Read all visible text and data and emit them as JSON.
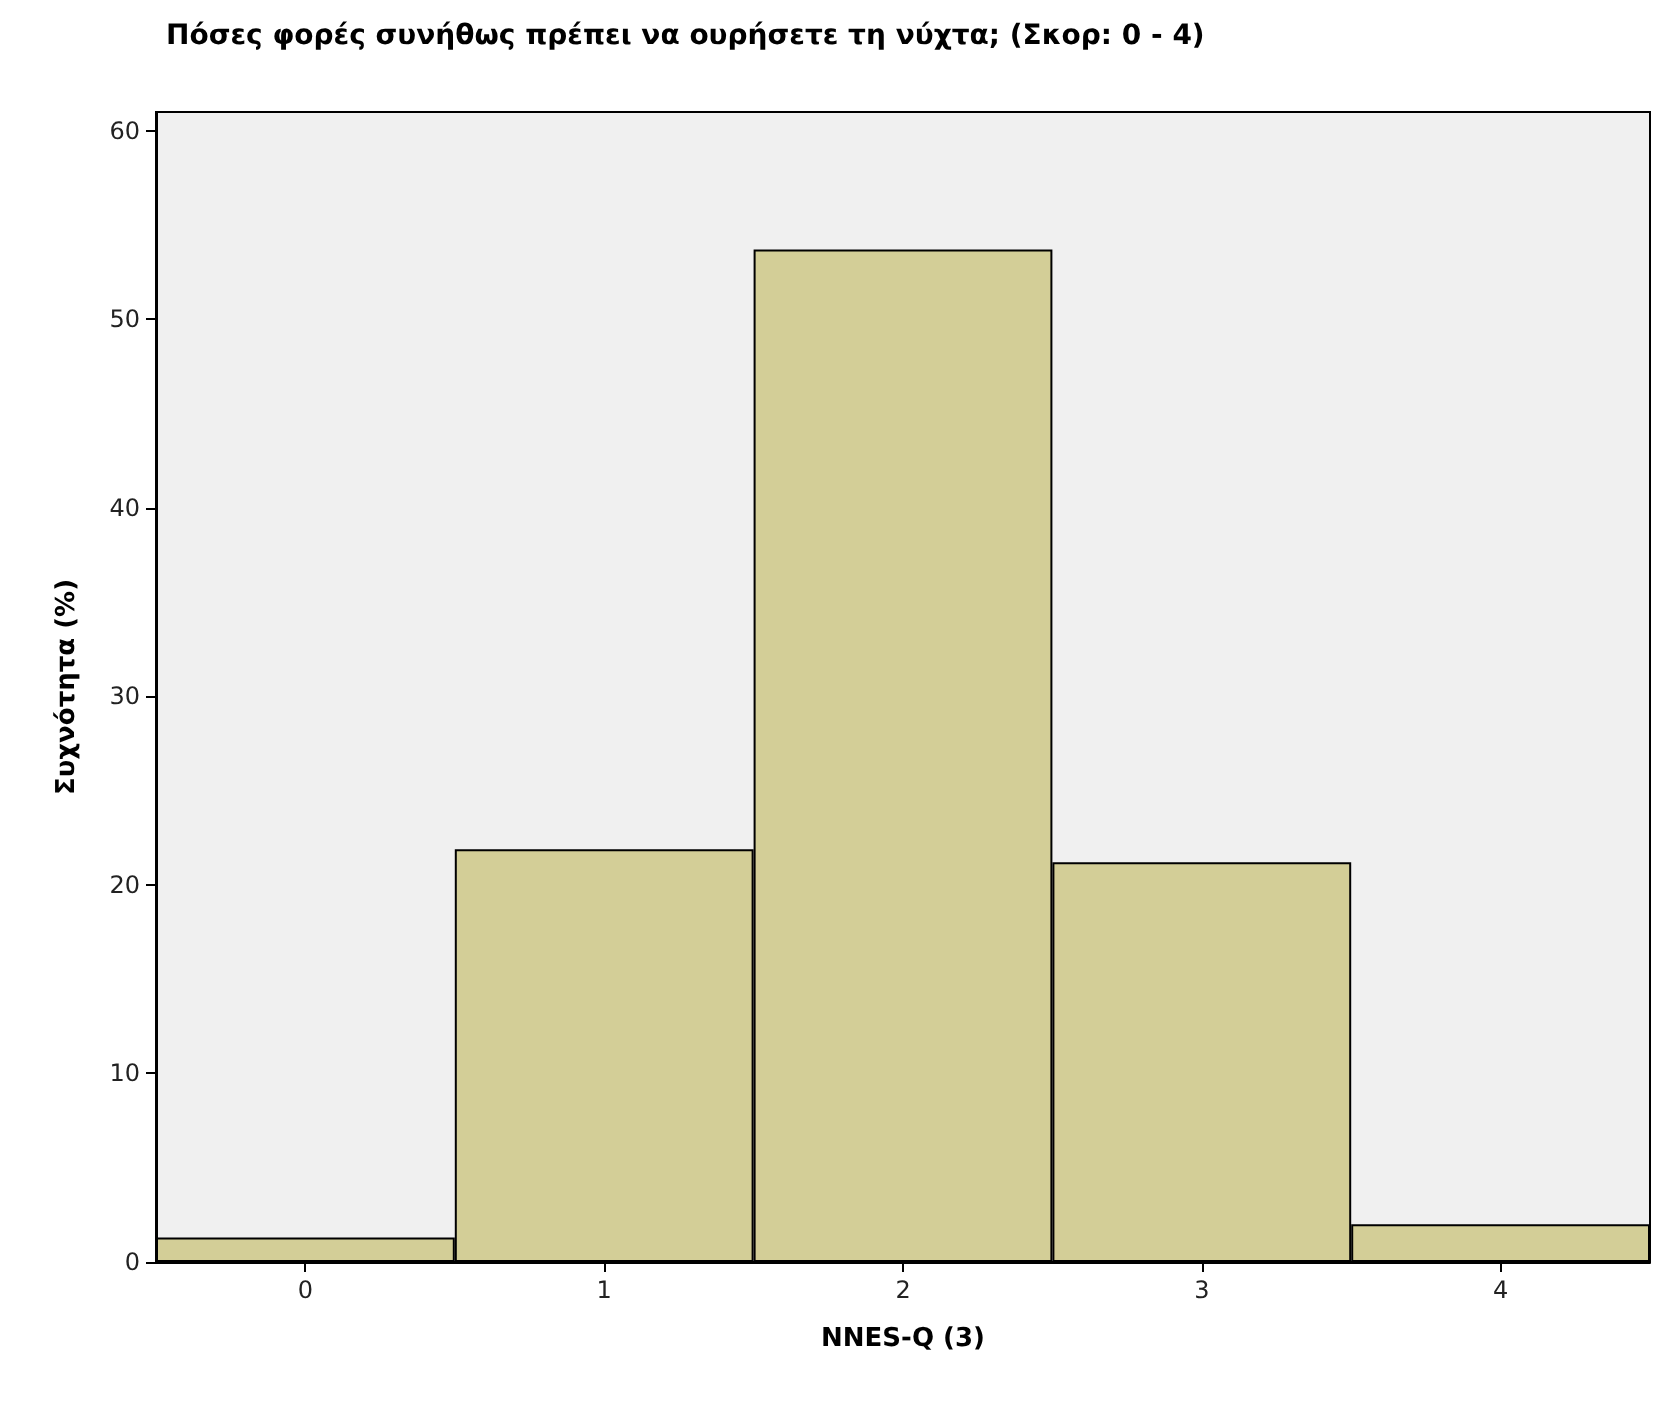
{
  "chart_data": {
    "type": "bar",
    "title": "Πόσες φορές συνήθως πρέπει να ουρήσετε τη νύχτα; (Σκορ: 0 - 4)",
    "xlabel": "NNES-Q (3)",
    "ylabel": "Συχνότητα (%)",
    "categories": [
      "0",
      "1",
      "2",
      "3",
      "4"
    ],
    "values": [
      1.3,
      21.9,
      53.7,
      21.2,
      2.0
    ],
    "color": "#d3ce97",
    "ylim": [
      0,
      61
    ],
    "yticks": [
      0,
      10,
      20,
      30,
      40,
      50,
      60
    ],
    "grid": false
  }
}
